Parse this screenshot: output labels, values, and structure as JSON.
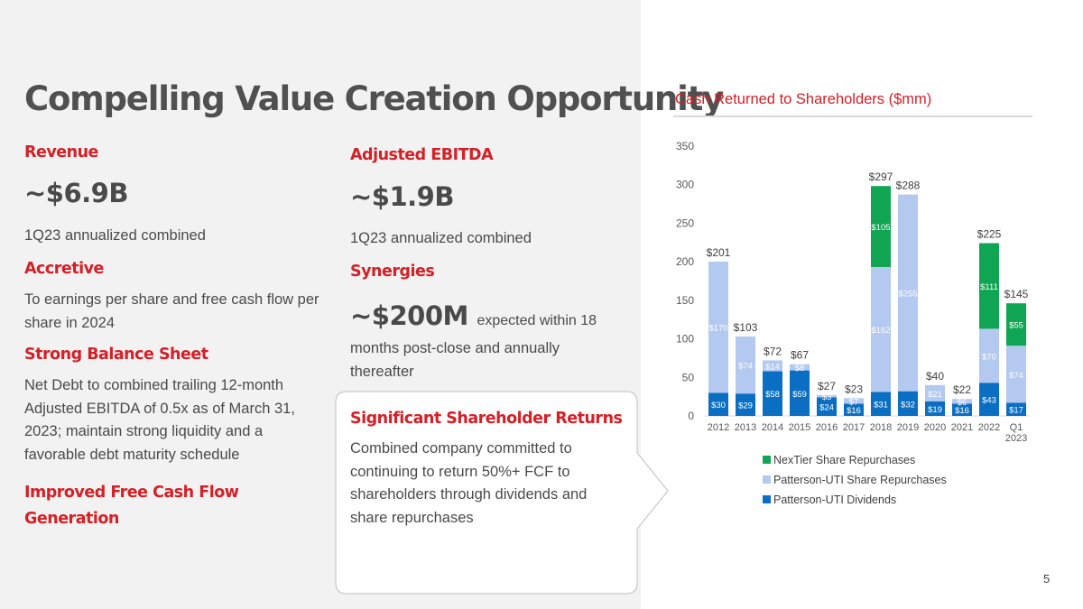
{
  "slide": {
    "title": "Compelling Value Creation Opportunity",
    "page_number": "5"
  },
  "left": {
    "revenue": {
      "heading": "Revenue",
      "value": "~$6.9B",
      "note": "1Q23 annualized combined"
    },
    "accretive": {
      "heading": "Accretive",
      "line1": "To earnings per share and free cash flow per",
      "line2": "share in 2024"
    },
    "balance": {
      "heading": "Strong Balance Sheet",
      "line1": "Net Debt to combined trailing 12-month",
      "line2": "Adjusted EBITDA of 0.5x as of March 31,",
      "line3": "2023; maintain strong liquidity and a",
      "line4": "favorable debt maturity schedule"
    },
    "fcf": {
      "heading_line1": "Improved Free Cash Flow",
      "heading_line2": "Generation"
    }
  },
  "middle": {
    "ebitda": {
      "heading": "Adjusted EBITDA",
      "value": "~$1.9B",
      "note": "1Q23 annualized combined"
    },
    "synergies": {
      "heading": "Synergies",
      "value": "~$200M",
      "value_suffix": "expected within 18",
      "line2": "months post-close and annually",
      "line3": "thereafter"
    },
    "returns": {
      "heading": "Significant Shareholder Returns",
      "line1": "Combined company committed to",
      "line2": "continuing to return 50%+ FCF to",
      "line3": "shareholders through dividends and",
      "line4": "share repurchases"
    }
  },
  "colors": {
    "accent_red": "#d42027",
    "dividends": "#0a6fc2",
    "pten_repurchases": "#b4c9ef",
    "nextier_repurchases": "#0fa552"
  },
  "chart_data": {
    "type": "bar",
    "stacked": true,
    "title": "Cash Returned to Shareholders ($mm)",
    "categories": [
      "2012",
      "2013",
      "2014",
      "2015",
      "2016",
      "2017",
      "2018",
      "2019",
      "2020",
      "2021",
      "2022",
      "Q1 2023"
    ],
    "series": [
      {
        "name": "Patterson-UTI Dividends",
        "values": [
          30,
          29,
          58,
          59,
          24,
          16,
          31,
          32,
          19,
          16,
          43,
          17
        ],
        "labels": [
          "$30",
          "$29",
          "$58",
          "$59",
          "$24",
          "$16",
          "$31",
          "$32",
          "$19",
          "$16",
          "$43",
          "$17"
        ]
      },
      {
        "name": "Patterson-UTI Share Repurchases",
        "values": [
          170,
          74,
          14,
          8,
          3,
          7,
          162,
          255,
          21,
          6,
          70,
          74
        ],
        "labels": [
          "$170",
          "$74",
          "$14",
          "$8",
          "$3",
          "$7",
          "$162",
          "$255",
          "$21",
          "$6",
          "$70",
          "$74"
        ]
      },
      {
        "name": "NexTier Share Repurchases",
        "values": [
          0,
          0,
          0,
          0,
          0,
          0,
          105,
          0,
          0,
          0,
          111,
          55
        ],
        "labels": [
          "",
          "",
          "",
          "",
          "",
          "",
          "$105",
          "",
          "",
          "",
          "$111",
          "$55"
        ]
      }
    ],
    "totals": [
      "$201",
      "$103",
      "$72",
      "$67",
      "$27",
      "$23",
      "$297",
      "$288",
      "$40",
      "$22",
      "$225",
      "$145"
    ],
    "legend": [
      "NexTier Share Repurchases",
      "Patterson-UTI Share Repurchases",
      "Patterson-UTI Dividends"
    ],
    "ylim": [
      0,
      350
    ],
    "yticks": [
      0,
      50,
      100,
      150,
      200,
      250,
      300,
      350
    ],
    "legend_position": "bottom",
    "grid": false
  }
}
